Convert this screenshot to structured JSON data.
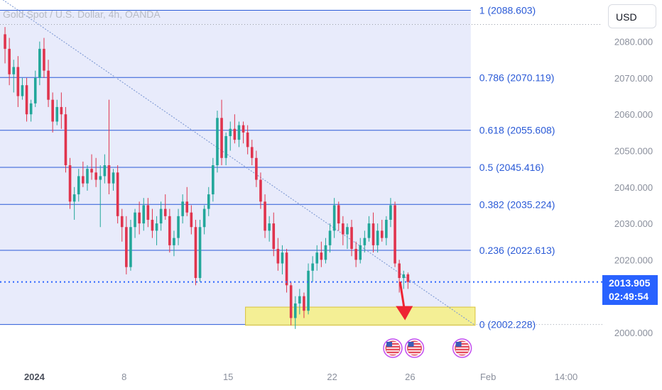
{
  "header": {
    "symbol_title": "Gold Spot / U.S. Dollar, 4h, OANDA",
    "currency_button": "USD"
  },
  "price_tag": {
    "price": "2013.905",
    "countdown": "02:49:54"
  },
  "colors": {
    "fib_zone_fill": "#e8ebfb",
    "fib_line": "#2a5ad7",
    "fib_label": "#2a5ad7",
    "candle_up": "#22a79a",
    "candle_down": "#e0344d",
    "current_price_line": "#2962ff",
    "trendline": "#7f9ad4",
    "support_zone_fill": "#f5f08a",
    "support_zone_border": "#d8c23a",
    "arrow": "#ee2433",
    "axis_text": "#8a8f9c"
  },
  "icons": [
    "us-flag-event-icon",
    "us-flag-event-icon",
    "us-flag-event-icon",
    "arrow-down-icon"
  ],
  "chart_data": {
    "type": "candlestick",
    "title": "Gold Spot / U.S. Dollar, 4h, OANDA",
    "ylim": [
      1996.0,
      2094.0
    ],
    "y_ticks": [
      "2000.000",
      "2010.000",
      "2020.000",
      "2030.000",
      "2040.000",
      "2050.000",
      "2060.000",
      "2070.000",
      "2080.000"
    ],
    "x_tick_labels": [
      {
        "label": "2024",
        "bar": 4
      },
      {
        "label": "8",
        "bar": 28
      },
      {
        "label": "15",
        "bar": 52
      },
      {
        "label": "22",
        "bar": 76
      },
      {
        "label": "26",
        "bar": 94
      },
      {
        "label": "Feb",
        "bar": 112
      },
      {
        "label": "14:00",
        "bar": 130
      }
    ],
    "total_slots": 140,
    "fibonacci": [
      {
        "level": "1",
        "price": 2088.603,
        "label": "1 (2088.603)"
      },
      {
        "level": "0.786",
        "price": 2070.119,
        "label": "0.786 (2070.119)"
      },
      {
        "level": "0.618",
        "price": 2055.608,
        "label": "0.618 (2055.608)"
      },
      {
        "level": "0.5",
        "price": 2045.416,
        "label": "0.5 (2045.416)"
      },
      {
        "level": "0.382",
        "price": 2035.224,
        "label": "0.382 (2035.224)"
      },
      {
        "level": "0.236",
        "price": 2022.613,
        "label": "0.236 (2022.613)"
      },
      {
        "level": "0",
        "price": 2002.228,
        "label": "0 (2002.228)"
      }
    ],
    "fib_zone_end_bar": 108,
    "current_price": 2013.905,
    "upper_dotted_price": 2084.7,
    "trendline": {
      "start": {
        "bar": 0,
        "price": 2091.5
      },
      "end": {
        "bar": 109,
        "price": 2002.0
      }
    },
    "support_zone": {
      "bar_start": 56,
      "bar_end": 109,
      "price_top": 2007.0,
      "price_bottom": 2002.0
    },
    "forecast_arrow": {
      "bar": 92,
      "price_from": 2013.2,
      "price_to": 2003.0
    },
    "event_markers_bars": [
      90,
      95,
      106
    ],
    "candles": [
      [
        2082.0,
        2084.0,
        2074.0,
        2078.0
      ],
      [
        2078.0,
        2081.0,
        2068.0,
        2071.0
      ],
      [
        2071.0,
        2075.0,
        2066.0,
        2073.0
      ],
      [
        2073.0,
        2076.0,
        2062.0,
        2065.0
      ],
      [
        2065.0,
        2070.0,
        2064.0,
        2068.0
      ],
      [
        2068.0,
        2070.0,
        2058.0,
        2060.0
      ],
      [
        2060.0,
        2064.0,
        2058.0,
        2063.0
      ],
      [
        2063.0,
        2072.0,
        2062.0,
        2070.0
      ],
      [
        2070.0,
        2080.0,
        2068.0,
        2078.0
      ],
      [
        2078.0,
        2081.0,
        2070.0,
        2072.0
      ],
      [
        2072.0,
        2075.0,
        2062.0,
        2064.0
      ],
      [
        2064.0,
        2066.0,
        2055.0,
        2058.0
      ],
      [
        2058.0,
        2064.0,
        2057.0,
        2062.0
      ],
      [
        2062.0,
        2066.0,
        2056.0,
        2060.0
      ],
      [
        2060.0,
        2062.0,
        2044.0,
        2046.0
      ],
      [
        2046.0,
        2048.0,
        2034.0,
        2036.0
      ],
      [
        2036.0,
        2040.0,
        2031.0,
        2038.0
      ],
      [
        2038.0,
        2045.0,
        2036.0,
        2043.0
      ],
      [
        2043.0,
        2047.0,
        2040.0,
        2041.0
      ],
      [
        2041.0,
        2046.0,
        2039.0,
        2045.0
      ],
      [
        2045.0,
        2049.0,
        2042.0,
        2044.0
      ],
      [
        2044.0,
        2048.0,
        2040.0,
        2042.0
      ],
      [
        2042.0,
        2046.0,
        2029.0,
        2043.0
      ],
      [
        2043.0,
        2049.0,
        2041.0,
        2046.0
      ],
      [
        2046.0,
        2064.0,
        2038.0,
        2041.0
      ],
      [
        2041.0,
        2045.0,
        2039.0,
        2044.0
      ],
      [
        2044.0,
        2046.0,
        2030.0,
        2032.0
      ],
      [
        2032.0,
        2034.0,
        2025.0,
        2029.0
      ],
      [
        2029.0,
        2032.0,
        2016.0,
        2018.0
      ],
      [
        2018.0,
        2031.0,
        2017.0,
        2029.0
      ],
      [
        2029.0,
        2034.0,
        2026.0,
        2033.0
      ],
      [
        2033.0,
        2036.0,
        2027.0,
        2030.0
      ],
      [
        2030.0,
        2037.0,
        2028.0,
        2035.0
      ],
      [
        2035.0,
        2037.0,
        2029.0,
        2031.0
      ],
      [
        2031.0,
        2034.0,
        2026.0,
        2028.0
      ],
      [
        2028.0,
        2032.0,
        2024.0,
        2030.0
      ],
      [
        2030.0,
        2036.0,
        2028.0,
        2034.0
      ],
      [
        2034.0,
        2038.0,
        2031.0,
        2032.0
      ],
      [
        2032.0,
        2034.0,
        2022.0,
        2024.0
      ],
      [
        2024.0,
        2028.0,
        2021.0,
        2026.0
      ],
      [
        2026.0,
        2034.0,
        2024.0,
        2032.0
      ],
      [
        2032.0,
        2038.0,
        2030.0,
        2036.0
      ],
      [
        2036.0,
        2040.0,
        2032.0,
        2033.0
      ],
      [
        2033.0,
        2035.0,
        2027.0,
        2029.0
      ],
      [
        2029.0,
        2031.0,
        2013.0,
        2015.0
      ],
      [
        2015.0,
        2031.0,
        2014.0,
        2029.0
      ],
      [
        2029.0,
        2035.0,
        2027.0,
        2034.0
      ],
      [
        2034.0,
        2040.0,
        2032.0,
        2038.0
      ],
      [
        2038.0,
        2048.0,
        2036.0,
        2046.0
      ],
      [
        2046.0,
        2061.0,
        2044.0,
        2059.0
      ],
      [
        2059.0,
        2064.0,
        2046.0,
        2048.0
      ],
      [
        2048.0,
        2055.0,
        2046.0,
        2054.0
      ],
      [
        2054.0,
        2058.0,
        2050.0,
        2056.0
      ],
      [
        2056.0,
        2060.0,
        2052.0,
        2053.0
      ],
      [
        2053.0,
        2058.0,
        2051.0,
        2057.0
      ],
      [
        2057.0,
        2058.0,
        2052.0,
        2055.0
      ],
      [
        2055.0,
        2057.0,
        2049.0,
        2051.0
      ],
      [
        2051.0,
        2053.0,
        2046.0,
        2048.0
      ],
      [
        2048.0,
        2050.0,
        2040.0,
        2042.0
      ],
      [
        2042.0,
        2044.0,
        2034.0,
        2036.0
      ],
      [
        2036.0,
        2038.0,
        2026.0,
        2028.0
      ],
      [
        2028.0,
        2032.0,
        2025.0,
        2030.0
      ],
      [
        2030.0,
        2033.0,
        2021.0,
        2023.0
      ],
      [
        2023.0,
        2026.0,
        2017.0,
        2019.0
      ],
      [
        2019.0,
        2024.0,
        2016.0,
        2022.0
      ],
      [
        2022.0,
        2023.0,
        2011.0,
        2013.0
      ],
      [
        2013.0,
        2014.0,
        2002.0,
        2004.0
      ],
      [
        2004.0,
        2010.0,
        2001.0,
        2008.0
      ],
      [
        2008.0,
        2012.0,
        2005.0,
        2010.0
      ],
      [
        2010.0,
        2011.0,
        2004.0,
        2006.0
      ],
      [
        2006.0,
        2019.0,
        2005.0,
        2017.0
      ],
      [
        2017.0,
        2021.0,
        2014.0,
        2019.0
      ],
      [
        2019.0,
        2024.0,
        2017.0,
        2022.0
      ],
      [
        2022.0,
        2025.0,
        2018.0,
        2020.0
      ],
      [
        2020.0,
        2026.0,
        2019.0,
        2024.0
      ],
      [
        2024.0,
        2030.0,
        2022.0,
        2028.0
      ],
      [
        2028.0,
        2037.0,
        2026.0,
        2035.0
      ],
      [
        2035.0,
        2036.0,
        2028.0,
        2030.0
      ],
      [
        2030.0,
        2032.0,
        2024.0,
        2027.0
      ],
      [
        2027.0,
        2030.0,
        2023.0,
        2029.0
      ],
      [
        2029.0,
        2031.0,
        2021.0,
        2023.0
      ],
      [
        2023.0,
        2025.0,
        2018.0,
        2020.0
      ],
      [
        2020.0,
        2026.0,
        2019.0,
        2024.0
      ],
      [
        2024.0,
        2028.0,
        2022.0,
        2026.0
      ],
      [
        2026.0,
        2032.0,
        2025.0,
        2030.0
      ],
      [
        2030.0,
        2033.0,
        2022.0,
        2024.0
      ],
      [
        2024.0,
        2030.0,
        2022.0,
        2028.0
      ],
      [
        2028.0,
        2031.0,
        2025.0,
        2026.0
      ],
      [
        2026.0,
        2032.0,
        2024.0,
        2031.0
      ],
      [
        2031.0,
        2037.0,
        2029.0,
        2035.0
      ],
      [
        2035.0,
        2036.0,
        2018.0,
        2019.0
      ],
      [
        2019.0,
        2020.0,
        2011.0,
        2015.0
      ],
      [
        2015.0,
        2017.0,
        2012.0,
        2016.0
      ],
      [
        2016.0,
        2016.5,
        2012.0,
        2013.9
      ]
    ]
  }
}
